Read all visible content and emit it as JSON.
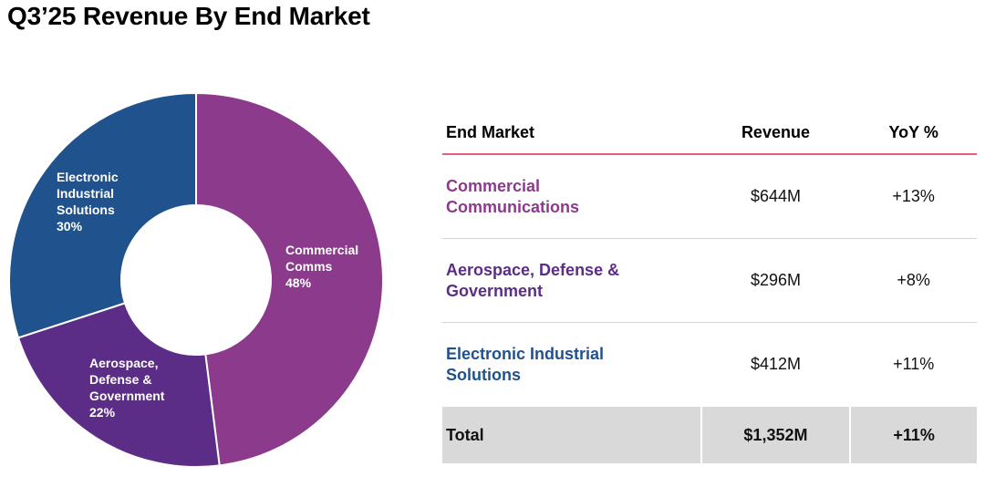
{
  "title": "Q3’25 Revenue By End Market",
  "chart_data": {
    "type": "pie",
    "donut": true,
    "slices": [
      {
        "label_lines": [
          "Commercial",
          "Comms",
          "48%"
        ],
        "name": "Commercial Comms",
        "value": 48,
        "color": "#8b3a8c"
      },
      {
        "label_lines": [
          "Aerospace,",
          "Defense &",
          "Government",
          "22%"
        ],
        "name": "Aerospace, Defense & Government",
        "value": 22,
        "color": "#5b2d86"
      },
      {
        "label_lines": [
          "Electronic",
          "Industrial",
          "Solutions",
          "30%"
        ],
        "name": "Electronic Industrial Solutions",
        "value": 30,
        "color": "#20528e"
      }
    ]
  },
  "table": {
    "headers": {
      "market": "End Market",
      "revenue": "Revenue",
      "yoy": "YoY %"
    },
    "rows": [
      {
        "market": "Commercial\nCommunications",
        "revenue": "$644M",
        "yoy": "+13%",
        "color": "#8b3a8c"
      },
      {
        "market": "Aerospace, Defense &\nGovernment",
        "revenue": "$296M",
        "yoy": "+8%",
        "color": "#5b2d86"
      },
      {
        "market": "Electronic Industrial\nSolutions",
        "revenue": "$412M",
        "yoy": "+11%",
        "color": "#20528e"
      }
    ],
    "total": {
      "label": "Total",
      "revenue": "$1,352M",
      "yoy": "+11%"
    }
  }
}
